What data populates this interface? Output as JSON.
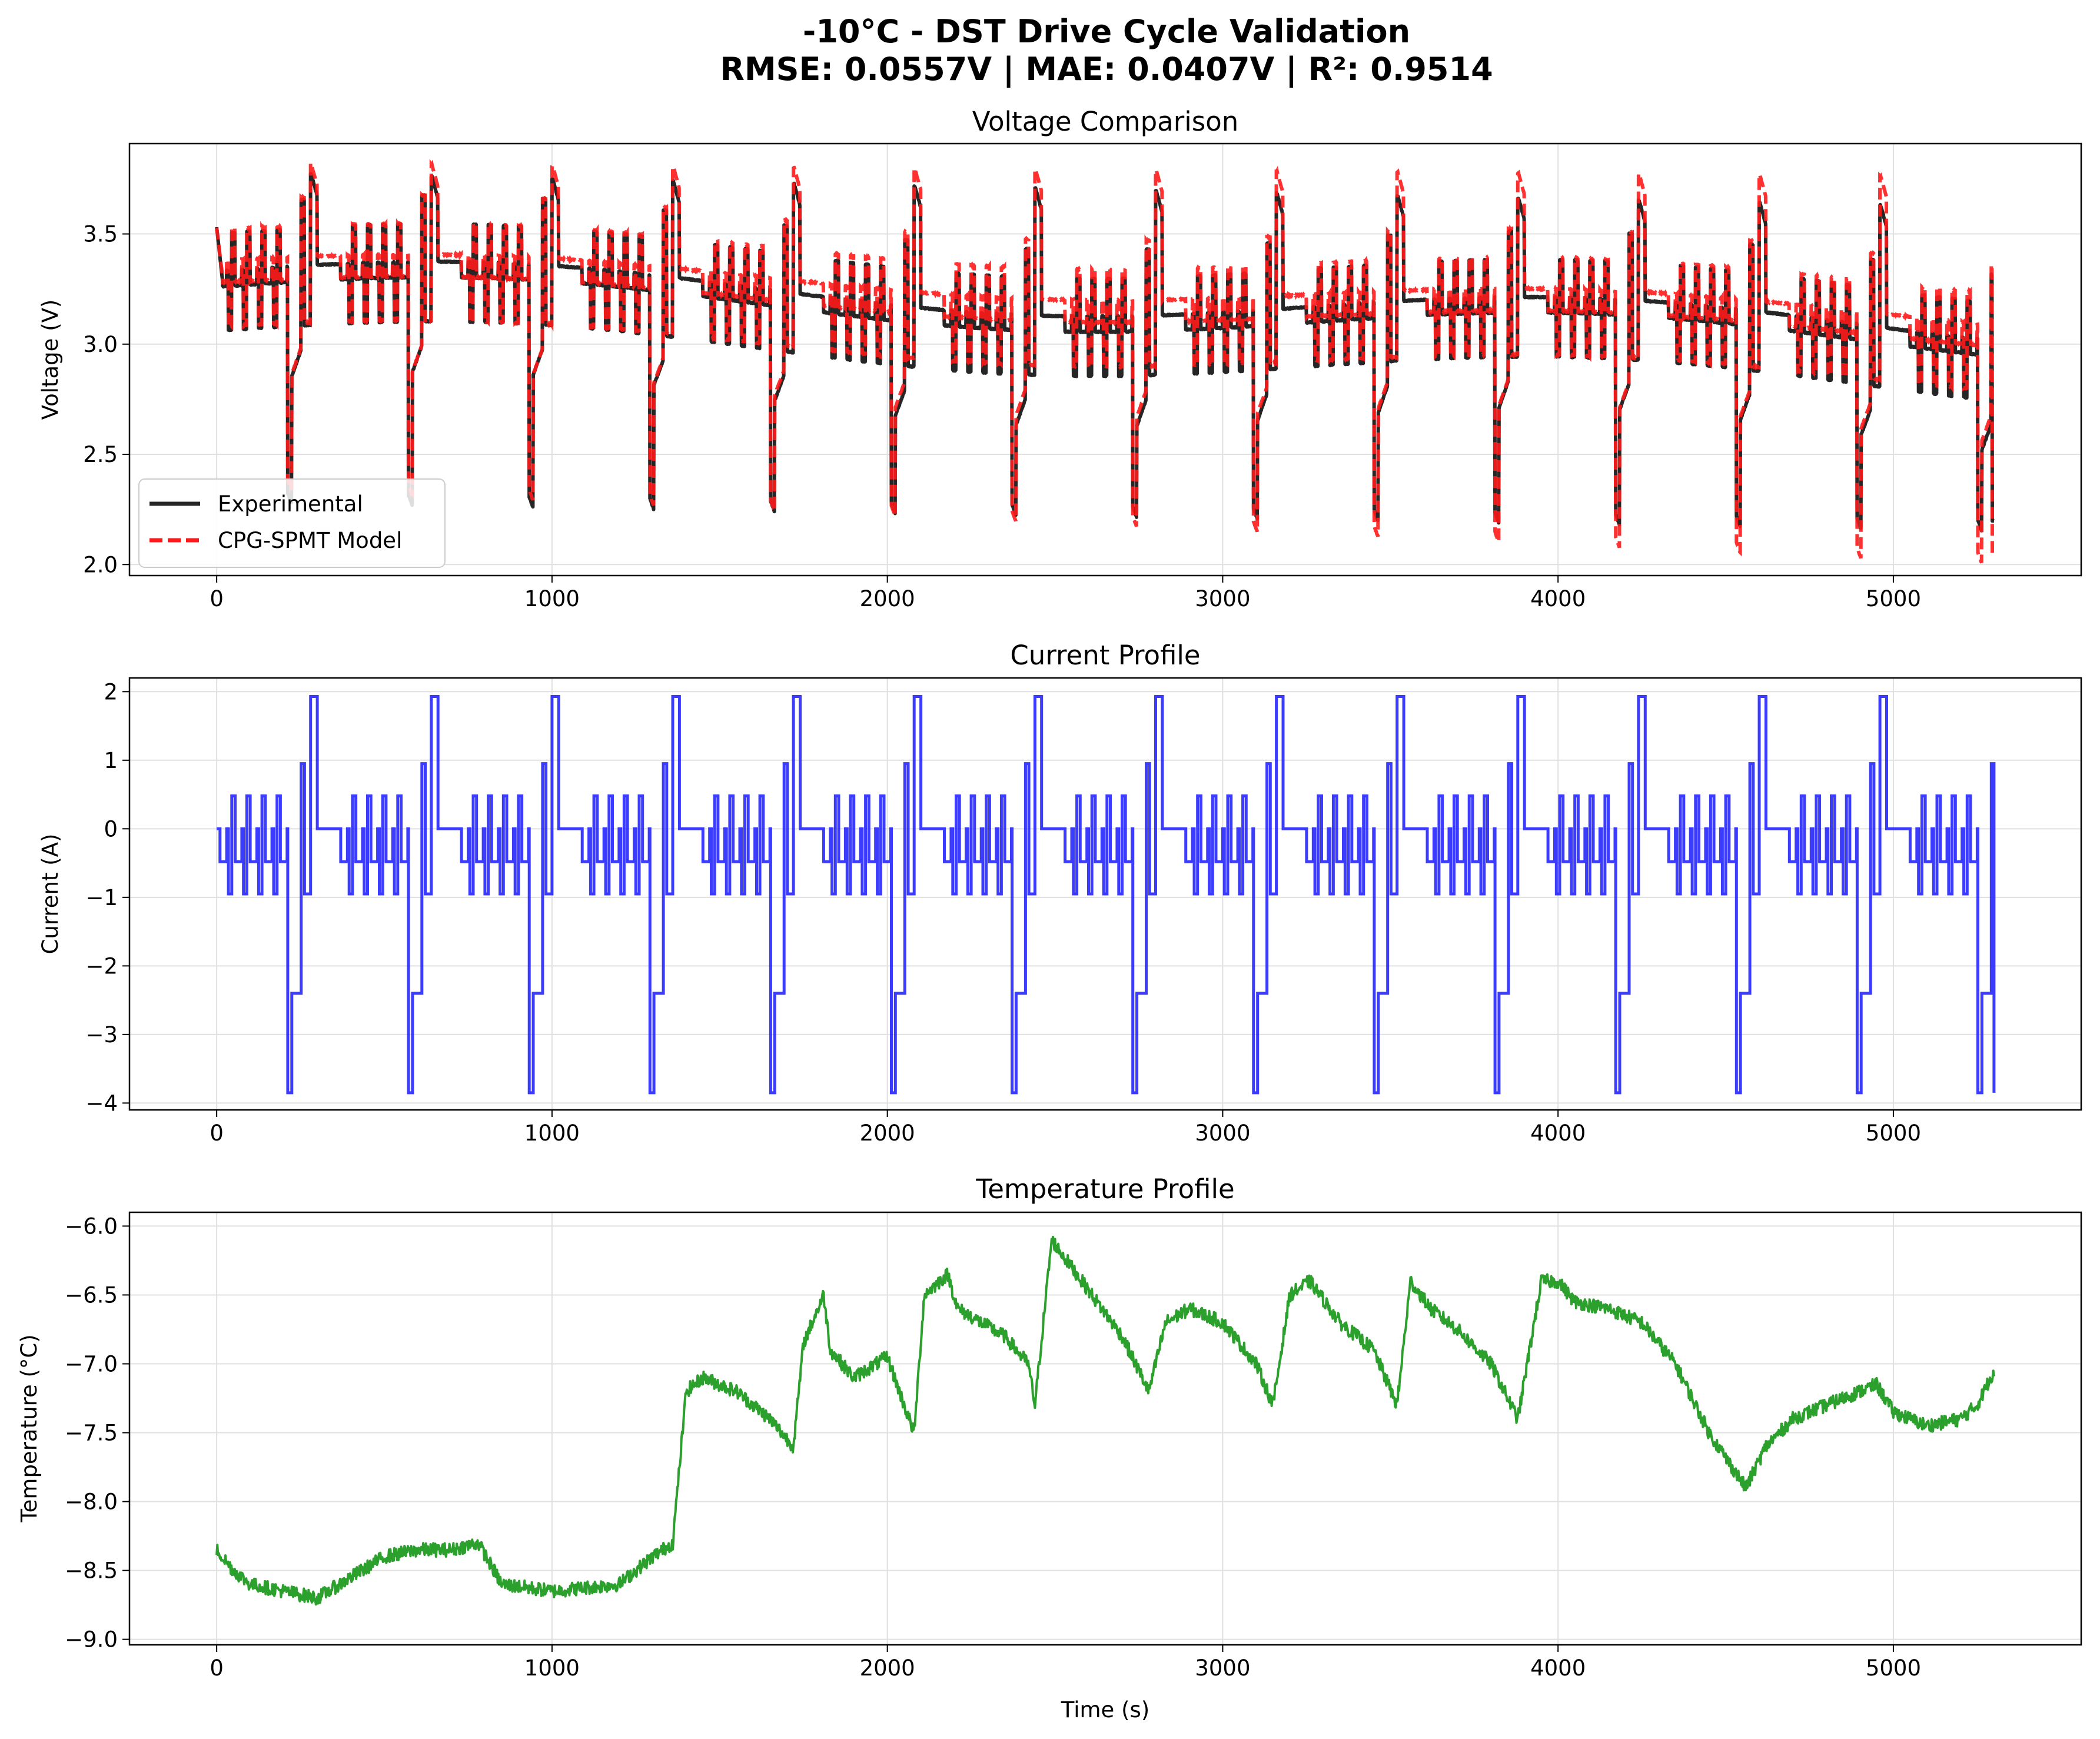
{
  "figure": {
    "title_line1": "-10°C - DST Drive Cycle Validation",
    "title_line2": "RMSE: 0.0557V | MAE: 0.0407V | R²: 0.9514"
  },
  "colors": {
    "experimental": "#262626",
    "model": "#ff1a1a",
    "current": "#1a1aff",
    "temperature": "#2ca02c",
    "grid": "#e0e0e0"
  },
  "chart_data": [
    {
      "id": "voltage",
      "type": "line",
      "title": "Voltage Comparison",
      "xlabel": "",
      "ylabel": "Voltage (V)",
      "xlim": [
        -260,
        5560
      ],
      "ylim": [
        1.95,
        3.91
      ],
      "xticks": [
        0,
        1000,
        2000,
        3000,
        4000,
        5000
      ],
      "yticks": [
        2.0,
        2.5,
        3.0,
        3.5
      ],
      "ytick_labels": [
        "2.0",
        "2.5",
        "3.0",
        "3.5"
      ],
      "grid": true,
      "legend_position": "lower-left",
      "series": [
        {
          "name": "Experimental",
          "style": "solid"
        },
        {
          "name": "CPG-SPMT Model",
          "style": "dashed"
        }
      ],
      "generator": {
        "t_end": 5300,
        "n_cycles": 14,
        "cycle_period": 360,
        "experimental": {
          "start": 3.53,
          "base_start": 3.28,
          "base_end": 3.02,
          "base_wave": 0.08,
          "rest_bump": 0.05,
          "peak_high": 3.78,
          "peak_end": 3.62,
          "dip_low": 2.28,
          "dip_end": 2.15
        },
        "model": {
          "start": 3.53,
          "base_start": 3.3,
          "base_end": 3.05,
          "base_wave": 0.06,
          "rest_bump": 0.08,
          "peak_high": 3.82,
          "peak_end": 3.76,
          "dip_low": 2.35,
          "dip_end": 2.0
        }
      }
    },
    {
      "id": "current",
      "type": "line",
      "title": "Current Profile",
      "xlabel": "",
      "ylabel": "Current (A)",
      "xlim": [
        -260,
        5560
      ],
      "ylim": [
        -4.1,
        2.2
      ],
      "xticks": [
        0,
        1000,
        2000,
        3000,
        4000,
        5000
      ],
      "yticks": [
        -4,
        -3,
        -2,
        -1,
        0,
        1,
        2
      ],
      "ytick_labels": [
        "−4",
        "−3",
        "−2",
        "−1",
        "0",
        "1",
        "2"
      ],
      "grid": true,
      "series": [
        {
          "name": "",
          "style": "solid"
        }
      ],
      "levels": {
        "rest": 0,
        "low_discharge": -0.48,
        "mid_discharge": -0.95,
        "small_charge": 0.48,
        "mid_charge": 0.95,
        "high_charge": 1.93,
        "high_discharge": -2.4,
        "peak_discharge": -3.85
      },
      "cycle_pattern": [
        [
          0,
          0
        ],
        [
          10,
          -0.48
        ],
        [
          30,
          0
        ],
        [
          35,
          -0.95
        ],
        [
          45,
          0.48
        ],
        [
          55,
          -0.48
        ],
        [
          75,
          0
        ],
        [
          80,
          -0.95
        ],
        [
          90,
          0.48
        ],
        [
          100,
          -0.48
        ],
        [
          120,
          0
        ],
        [
          125,
          -0.95
        ],
        [
          135,
          0.48
        ],
        [
          145,
          -0.48
        ],
        [
          165,
          0
        ],
        [
          170,
          -0.95
        ],
        [
          180,
          0.48
        ],
        [
          190,
          -0.48
        ],
        [
          210,
          0
        ],
        [
          212,
          -3.85
        ],
        [
          224,
          -2.4
        ],
        [
          252,
          0.95
        ],
        [
          262,
          -0.95
        ],
        [
          280,
          1.93
        ],
        [
          300,
          0
        ],
        [
          360,
          0
        ]
      ],
      "generator": {
        "t_end": 5300,
        "n_cycles": 14,
        "cycle_period": 360,
        "final_value": -3.85
      }
    },
    {
      "id": "temperature",
      "type": "line",
      "title": "Temperature Profile",
      "xlabel": "Time (s)",
      "ylabel": "Temperature (°C)",
      "xlim": [
        -260,
        5560
      ],
      "ylim": [
        -9.04,
        -5.9
      ],
      "xticks": [
        0,
        1000,
        2000,
        3000,
        4000,
        5000
      ],
      "yticks": [
        -9.0,
        -8.5,
        -8.0,
        -7.5,
        -7.0,
        -6.5,
        -6.0
      ],
      "ytick_labels": [
        "−9.0",
        "−8.5",
        "−8.0",
        "−7.5",
        "−7.0",
        "−6.5",
        "−6.0"
      ],
      "grid": true,
      "series": [
        {
          "name": "",
          "style": "solid"
        }
      ],
      "keypoints": [
        [
          0,
          -8.35
        ],
        [
          50,
          -8.5
        ],
        [
          100,
          -8.6
        ],
        [
          200,
          -8.65
        ],
        [
          300,
          -8.7
        ],
        [
          400,
          -8.55
        ],
        [
          500,
          -8.4
        ],
        [
          600,
          -8.35
        ],
        [
          700,
          -8.35
        ],
        [
          780,
          -8.3
        ],
        [
          850,
          -8.6
        ],
        [
          1000,
          -8.65
        ],
        [
          1200,
          -8.6
        ],
        [
          1300,
          -8.4
        ],
        [
          1360,
          -8.3
        ],
        [
          1400,
          -7.2
        ],
        [
          1450,
          -7.1
        ],
        [
          1550,
          -7.2
        ],
        [
          1650,
          -7.4
        ],
        [
          1720,
          -7.6
        ],
        [
          1750,
          -6.85
        ],
        [
          1810,
          -6.5
        ],
        [
          1830,
          -6.9
        ],
        [
          1900,
          -7.1
        ],
        [
          2000,
          -6.95
        ],
        [
          2050,
          -7.3
        ],
        [
          2080,
          -7.5
        ],
        [
          2110,
          -6.5
        ],
        [
          2180,
          -6.35
        ],
        [
          2210,
          -6.6
        ],
        [
          2350,
          -6.8
        ],
        [
          2420,
          -7.0
        ],
        [
          2440,
          -7.3
        ],
        [
          2490,
          -6.1
        ],
        [
          2550,
          -6.3
        ],
        [
          2700,
          -6.8
        ],
        [
          2780,
          -7.2
        ],
        [
          2830,
          -6.7
        ],
        [
          2900,
          -6.6
        ],
        [
          3000,
          -6.7
        ],
        [
          3100,
          -7.0
        ],
        [
          3150,
          -7.3
        ],
        [
          3200,
          -6.5
        ],
        [
          3260,
          -6.4
        ],
        [
          3350,
          -6.7
        ],
        [
          3450,
          -6.9
        ],
        [
          3520,
          -7.3
        ],
        [
          3560,
          -6.4
        ],
        [
          3620,
          -6.6
        ],
        [
          3700,
          -6.75
        ],
        [
          3800,
          -7.0
        ],
        [
          3880,
          -7.4
        ],
        [
          3950,
          -6.4
        ],
        [
          4000,
          -6.4
        ],
        [
          4050,
          -6.55
        ],
        [
          4150,
          -6.6
        ],
        [
          4250,
          -6.7
        ],
        [
          4350,
          -7.0
        ],
        [
          4450,
          -7.5
        ],
        [
          4560,
          -7.9
        ],
        [
          4620,
          -7.6
        ],
        [
          4700,
          -7.4
        ],
        [
          4800,
          -7.3
        ],
        [
          4900,
          -7.2
        ],
        [
          4950,
          -7.15
        ],
        [
          5000,
          -7.35
        ],
        [
          5100,
          -7.45
        ],
        [
          5200,
          -7.4
        ],
        [
          5250,
          -7.3
        ],
        [
          5300,
          -7.05
        ]
      ],
      "noise_amplitude": 0.05
    }
  ]
}
